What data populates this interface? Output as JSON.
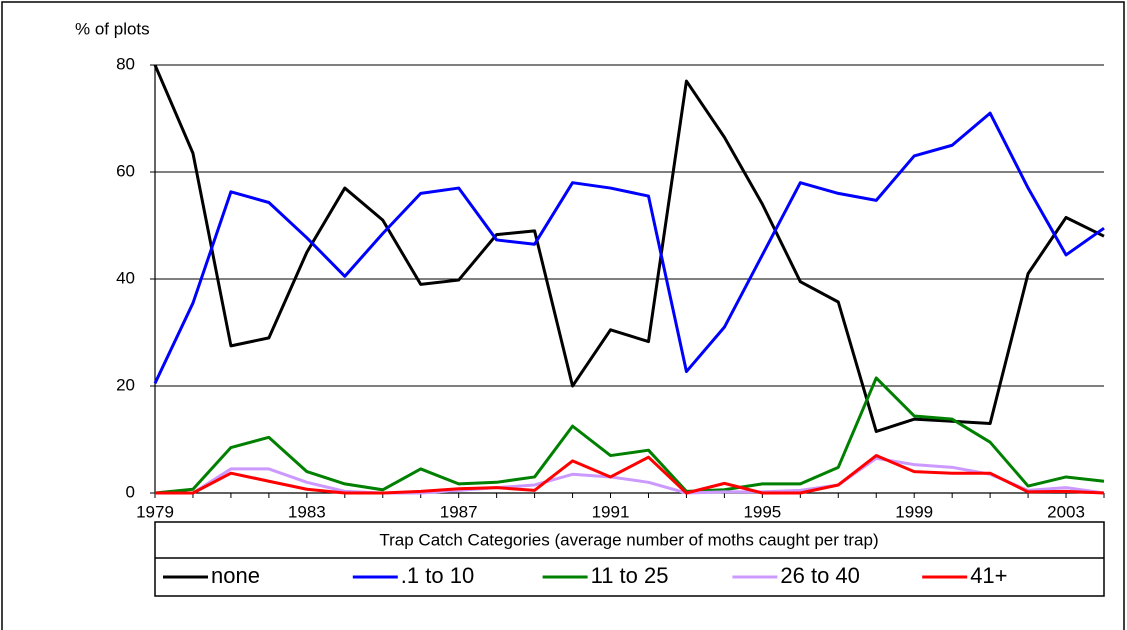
{
  "chart_data": {
    "type": "line",
    "y_label": "% of plots",
    "legend_title": "Trap Catch Categories (average number of moths caught per trap)",
    "categories": [
      "1979",
      null,
      null,
      null,
      "1983",
      null,
      null,
      null,
      "1987",
      null,
      null,
      null,
      "1991",
      null,
      null,
      null,
      "1995",
      null,
      null,
      null,
      "1999",
      null,
      null,
      null,
      "2003",
      null
    ],
    "ylim": [
      0,
      80
    ],
    "yticks": [
      0,
      20,
      40,
      60,
      80
    ],
    "grid": true,
    "legend": "bottom",
    "series": [
      {
        "name": "none",
        "color": "#000000",
        "values": [
          80,
          63.5,
          27.5,
          29,
          45,
          57,
          51,
          39,
          39.8,
          48.3,
          49,
          20,
          30.5,
          28.3,
          77,
          66.5,
          54,
          39.5,
          35.7,
          11.5,
          13.8,
          13.4,
          13,
          41,
          51.5,
          48
        ]
      },
      {
        "name": ".1 to 10",
        "color": "#0000ff",
        "values": [
          20.5,
          35.5,
          56.3,
          54.3,
          47.7,
          40.5,
          48.5,
          56,
          57,
          47.3,
          46.5,
          58,
          57,
          55.5,
          22.7,
          31,
          44.5,
          58,
          56,
          54.7,
          63,
          65,
          71,
          57,
          44.5,
          49.5
        ]
      },
      {
        "name": "11 to 25",
        "color": "#008000",
        "values": [
          0,
          0.7,
          8.5,
          10.4,
          4,
          1.7,
          0.6,
          4.5,
          1.7,
          2,
          3,
          12.5,
          7,
          8,
          0.3,
          0.6,
          1.7,
          1.7,
          4.8,
          21.5,
          14.4,
          13.8,
          9.5,
          1.3,
          3,
          2.2
        ]
      },
      {
        "name": "26 to 40",
        "color": "#cc99ff",
        "values": [
          0,
          0,
          4.5,
          4.5,
          2,
          0.3,
          0,
          0,
          0.5,
          1,
          1.5,
          3.5,
          3,
          2,
          0,
          0.2,
          0.2,
          0.5,
          1.5,
          6.5,
          5.3,
          4.8,
          3.5,
          0.5,
          1,
          0
        ]
      },
      {
        "name": "41+",
        "color": "#ff0000",
        "values": [
          0,
          0,
          3.7,
          2.2,
          0.7,
          0,
          0,
          0.3,
          0.8,
          1,
          0.5,
          6,
          3,
          6.7,
          0,
          1.8,
          0,
          0,
          1.5,
          7,
          4,
          3.7,
          3.7,
          0.2,
          0.3,
          0
        ]
      }
    ]
  }
}
